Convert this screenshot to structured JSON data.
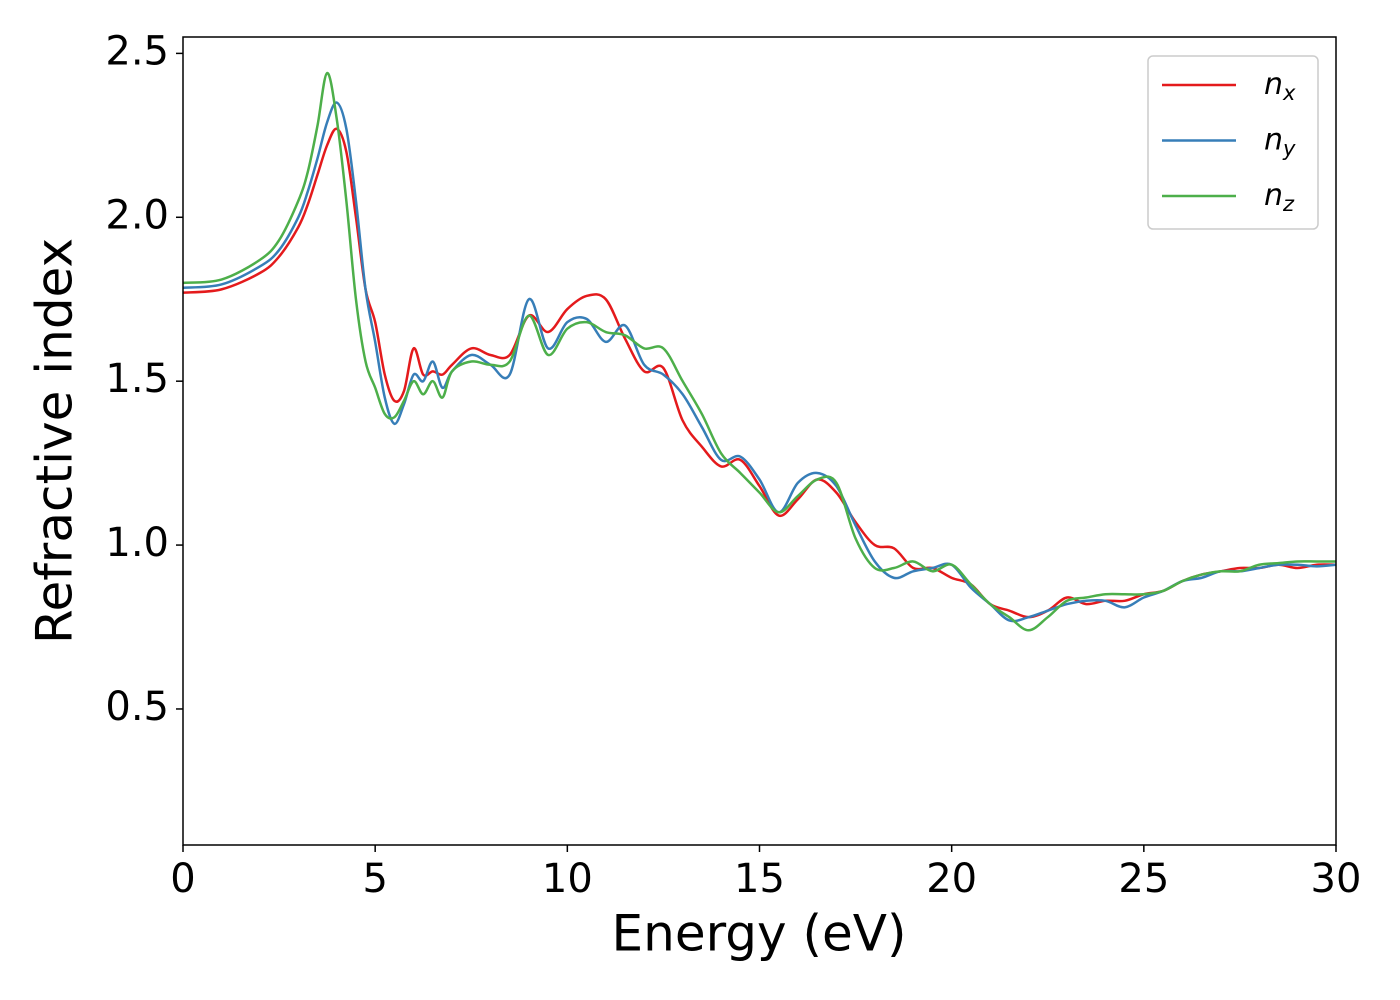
{
  "chart_data": {
    "type": "line",
    "xlabel": "Energy (eV)",
    "ylabel": "Refractive index",
    "x": [
      0,
      1,
      2,
      2.5,
      3,
      3.25,
      3.5,
      3.75,
      4,
      4.25,
      4.5,
      4.75,
      5,
      5.25,
      5.5,
      5.75,
      6,
      6.25,
      6.5,
      6.75,
      7,
      7.5,
      8,
      8.5,
      9,
      9.5,
      10,
      10.5,
      11,
      11.5,
      12,
      12.5,
      13,
      13.5,
      14,
      14.5,
      15,
      15.5,
      16,
      16.5,
      17,
      17.5,
      18,
      18.5,
      19,
      19.5,
      20,
      20.5,
      21,
      21.5,
      22,
      22.5,
      23,
      23.5,
      24,
      24.5,
      25,
      25.5,
      26,
      26.5,
      27,
      27.5,
      28,
      28.5,
      29,
      29.5,
      30
    ],
    "series": [
      {
        "name": "nx",
        "color": "#e41a1c",
        "values": [
          1.77,
          1.78,
          1.83,
          1.88,
          1.97,
          2.04,
          2.13,
          2.22,
          2.27,
          2.2,
          2.0,
          1.78,
          1.68,
          1.52,
          1.44,
          1.47,
          1.6,
          1.52,
          1.53,
          1.52,
          1.55,
          1.6,
          1.58,
          1.58,
          1.7,
          1.65,
          1.72,
          1.76,
          1.75,
          1.63,
          1.53,
          1.54,
          1.38,
          1.3,
          1.24,
          1.26,
          1.18,
          1.09,
          1.14,
          1.2,
          1.16,
          1.07,
          1.0,
          0.99,
          0.93,
          0.93,
          0.9,
          0.88,
          0.82,
          0.8,
          0.78,
          0.8,
          0.84,
          0.82,
          0.83,
          0.83,
          0.85,
          0.86,
          0.89,
          0.91,
          0.92,
          0.93,
          0.93,
          0.94,
          0.93,
          0.94,
          0.94
        ]
      },
      {
        "name": "ny",
        "color": "#377eb8",
        "values": [
          1.785,
          1.795,
          1.85,
          1.9,
          2.0,
          2.08,
          2.18,
          2.29,
          2.35,
          2.27,
          2.05,
          1.78,
          1.62,
          1.45,
          1.37,
          1.43,
          1.52,
          1.5,
          1.56,
          1.48,
          1.53,
          1.58,
          1.55,
          1.52,
          1.75,
          1.6,
          1.68,
          1.69,
          1.62,
          1.67,
          1.55,
          1.52,
          1.46,
          1.36,
          1.26,
          1.27,
          1.2,
          1.1,
          1.19,
          1.22,
          1.18,
          1.06,
          0.95,
          0.9,
          0.92,
          0.93,
          0.94,
          0.87,
          0.82,
          0.77,
          0.78,
          0.8,
          0.82,
          0.83,
          0.83,
          0.81,
          0.84,
          0.86,
          0.89,
          0.9,
          0.92,
          0.92,
          0.93,
          0.94,
          0.94,
          0.935,
          0.94
        ]
      },
      {
        "name": "nz",
        "color": "#4daf4a",
        "values": [
          1.8,
          1.81,
          1.87,
          1.93,
          2.05,
          2.14,
          2.28,
          2.44,
          2.3,
          2.05,
          1.75,
          1.56,
          1.48,
          1.4,
          1.39,
          1.44,
          1.5,
          1.46,
          1.5,
          1.45,
          1.53,
          1.56,
          1.55,
          1.56,
          1.7,
          1.58,
          1.66,
          1.68,
          1.65,
          1.64,
          1.6,
          1.6,
          1.5,
          1.4,
          1.28,
          1.22,
          1.16,
          1.1,
          1.15,
          1.2,
          1.19,
          1.02,
          0.93,
          0.93,
          0.95,
          0.92,
          0.94,
          0.88,
          0.82,
          0.78,
          0.74,
          0.78,
          0.83,
          0.84,
          0.85,
          0.85,
          0.85,
          0.86,
          0.89,
          0.91,
          0.92,
          0.92,
          0.94,
          0.945,
          0.95,
          0.95,
          0.95
        ]
      }
    ],
    "xlim": [
      0,
      30
    ],
    "xticks": [
      0,
      5,
      10,
      15,
      20,
      25,
      30
    ],
    "ylim": [
      0.085,
      2.55
    ],
    "yticks": [
      0.5,
      {
        "value": 1,
        "label": "1.0"
      },
      1.5,
      {
        "value": 2,
        "label": "2.0"
      },
      2.5
    ],
    "grid": false,
    "legend": "upper right"
  }
}
